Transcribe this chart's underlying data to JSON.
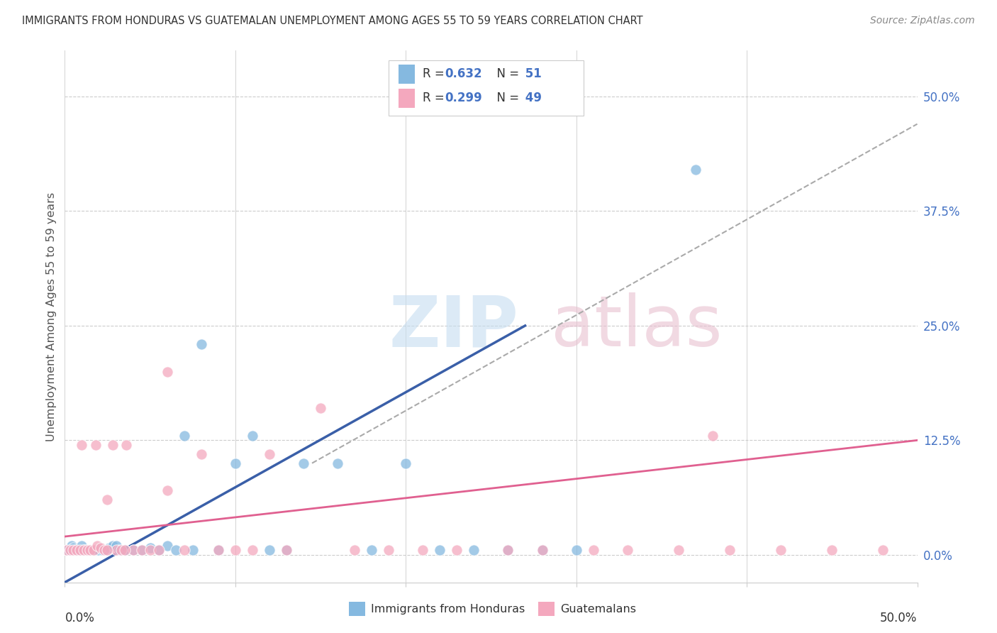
{
  "title": "IMMIGRANTS FROM HONDURAS VS GUATEMALAN UNEMPLOYMENT AMONG AGES 55 TO 59 YEARS CORRELATION CHART",
  "source": "Source: ZipAtlas.com",
  "ylabel": "Unemployment Among Ages 55 to 59 years",
  "ytick_labels": [
    "0.0%",
    "12.5%",
    "25.0%",
    "37.5%",
    "50.0%"
  ],
  "ytick_values": [
    0.0,
    0.125,
    0.25,
    0.375,
    0.5
  ],
  "xlim": [
    0.0,
    0.5
  ],
  "ylim": [
    -0.03,
    0.55
  ],
  "blue_color": "#85b9e0",
  "pink_color": "#f4a8be",
  "blue_line_color": "#3a5fa8",
  "pink_line_color": "#e06090",
  "dash_line_color": "#aaaaaa",
  "legend_blue_label": "Immigrants from Honduras",
  "legend_pink_label": "Guatemalans",
  "R_blue": 0.632,
  "N_blue": 51,
  "R_pink": 0.299,
  "N_pink": 49,
  "blue_scatter_x": [
    0.001,
    0.002,
    0.003,
    0.004,
    0.005,
    0.006,
    0.007,
    0.008,
    0.009,
    0.01,
    0.011,
    0.012,
    0.013,
    0.014,
    0.015,
    0.016,
    0.017,
    0.018,
    0.019,
    0.02,
    0.022,
    0.024,
    0.026,
    0.028,
    0.03,
    0.032,
    0.035,
    0.04,
    0.045,
    0.05,
    0.055,
    0.06,
    0.065,
    0.07,
    0.075,
    0.08,
    0.09,
    0.1,
    0.11,
    0.12,
    0.13,
    0.14,
    0.16,
    0.18,
    0.2,
    0.22,
    0.24,
    0.26,
    0.28,
    0.3,
    0.37
  ],
  "blue_scatter_y": [
    0.005,
    0.005,
    0.005,
    0.01,
    0.008,
    0.005,
    0.005,
    0.005,
    0.005,
    0.01,
    0.005,
    0.005,
    0.005,
    0.005,
    0.005,
    0.005,
    0.005,
    0.005,
    0.005,
    0.005,
    0.005,
    0.005,
    0.008,
    0.01,
    0.01,
    0.005,
    0.005,
    0.005,
    0.005,
    0.008,
    0.005,
    0.01,
    0.005,
    0.13,
    0.005,
    0.23,
    0.005,
    0.1,
    0.13,
    0.005,
    0.005,
    0.1,
    0.1,
    0.005,
    0.1,
    0.005,
    0.005,
    0.005,
    0.005,
    0.005,
    0.42
  ],
  "pink_scatter_x": [
    0.001,
    0.003,
    0.005,
    0.007,
    0.009,
    0.011,
    0.013,
    0.015,
    0.017,
    0.019,
    0.021,
    0.023,
    0.025,
    0.028,
    0.03,
    0.033,
    0.036,
    0.04,
    0.045,
    0.05,
    0.055,
    0.06,
    0.07,
    0.08,
    0.09,
    0.1,
    0.11,
    0.12,
    0.13,
    0.15,
    0.17,
    0.19,
    0.21,
    0.23,
    0.26,
    0.28,
    0.31,
    0.33,
    0.36,
    0.39,
    0.42,
    0.45,
    0.48,
    0.01,
    0.018,
    0.025,
    0.035,
    0.06,
    0.38
  ],
  "pink_scatter_y": [
    0.005,
    0.005,
    0.005,
    0.005,
    0.005,
    0.005,
    0.005,
    0.005,
    0.005,
    0.01,
    0.008,
    0.005,
    0.06,
    0.12,
    0.005,
    0.005,
    0.12,
    0.005,
    0.005,
    0.005,
    0.005,
    0.07,
    0.005,
    0.11,
    0.005,
    0.005,
    0.005,
    0.11,
    0.005,
    0.16,
    0.005,
    0.005,
    0.005,
    0.005,
    0.005,
    0.005,
    0.005,
    0.005,
    0.005,
    0.005,
    0.005,
    0.005,
    0.005,
    0.12,
    0.12,
    0.005,
    0.005,
    0.2,
    0.13
  ],
  "blue_line_x": [
    0.0,
    0.27
  ],
  "blue_line_y": [
    -0.03,
    0.25
  ],
  "pink_line_x": [
    0.0,
    0.5
  ],
  "pink_line_y": [
    0.02,
    0.125
  ],
  "dash_line_x": [
    0.145,
    0.5
  ],
  "dash_line_y": [
    0.1,
    0.47
  ]
}
